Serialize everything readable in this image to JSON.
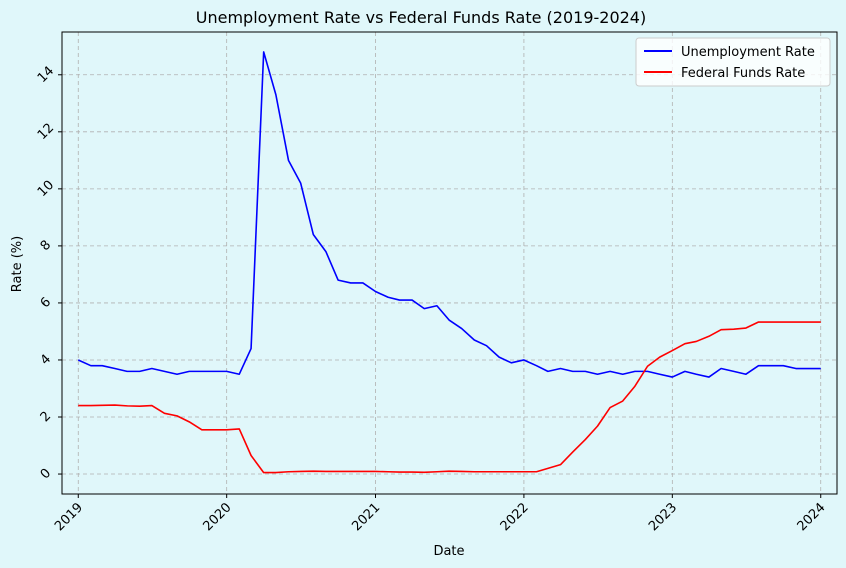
{
  "colors": {
    "figure_bg": "#e0f7fa",
    "axes_bg": "#e0f7fa",
    "grid": "#b0b0b0",
    "unemployment": "#0000ff",
    "fed_funds": "#ff0000"
  },
  "chart_data": {
    "type": "line",
    "title": "Unemployment Rate vs Federal Funds Rate (2019-2024)",
    "xlabel": "Date",
    "ylabel": "Rate (%)",
    "grid": true,
    "legend_position": "top-right",
    "xlim": [
      "2018-11-22",
      "2024-02-10"
    ],
    "ylim": [
      -0.7,
      15.5
    ],
    "x_ticks": [
      "2019-01-01",
      "2020-01-01",
      "2021-01-01",
      "2022-01-01",
      "2023-01-01",
      "2024-01-01"
    ],
    "x_tick_labels": [
      "2019",
      "2020",
      "2021",
      "2022",
      "2023",
      "2024"
    ],
    "y_ticks": [
      0,
      2,
      4,
      6,
      8,
      10,
      12,
      14
    ],
    "y_tick_labels": [
      "0",
      "2",
      "4",
      "6",
      "8",
      "10",
      "12",
      "14"
    ],
    "x": [
      "2019-01-01",
      "2019-02-01",
      "2019-03-01",
      "2019-04-01",
      "2019-05-01",
      "2019-06-01",
      "2019-07-01",
      "2019-08-01",
      "2019-09-01",
      "2019-10-01",
      "2019-11-01",
      "2019-12-01",
      "2020-01-01",
      "2020-02-01",
      "2020-03-01",
      "2020-04-01",
      "2020-05-01",
      "2020-06-01",
      "2020-07-01",
      "2020-08-01",
      "2020-09-01",
      "2020-10-01",
      "2020-11-01",
      "2020-12-01",
      "2021-01-01",
      "2021-02-01",
      "2021-03-01",
      "2021-04-01",
      "2021-05-01",
      "2021-06-01",
      "2021-07-01",
      "2021-08-01",
      "2021-09-01",
      "2021-10-01",
      "2021-11-01",
      "2021-12-01",
      "2022-01-01",
      "2022-02-01",
      "2022-03-01",
      "2022-04-01",
      "2022-05-01",
      "2022-06-01",
      "2022-07-01",
      "2022-08-01",
      "2022-09-01",
      "2022-10-01",
      "2022-11-01",
      "2022-12-01",
      "2023-01-01",
      "2023-02-01",
      "2023-03-01",
      "2023-04-01",
      "2023-05-01",
      "2023-06-01",
      "2023-07-01",
      "2023-08-01",
      "2023-09-01",
      "2023-10-01",
      "2023-11-01",
      "2023-12-01",
      "2024-01-01"
    ],
    "series": [
      {
        "name": "Unemployment Rate",
        "color": "#0000ff",
        "values": [
          4.0,
          3.8,
          3.8,
          3.7,
          3.6,
          3.6,
          3.7,
          3.6,
          3.5,
          3.6,
          3.6,
          3.6,
          3.6,
          3.5,
          4.4,
          14.8,
          13.3,
          11.0,
          10.2,
          8.4,
          7.8,
          6.8,
          6.7,
          6.7,
          6.4,
          6.2,
          6.1,
          6.1,
          5.8,
          5.9,
          5.4,
          5.1,
          4.7,
          4.5,
          4.1,
          3.9,
          4.0,
          3.8,
          3.6,
          3.7,
          3.6,
          3.6,
          3.5,
          3.6,
          3.5,
          3.6,
          3.6,
          3.5,
          3.4,
          3.6,
          3.5,
          3.4,
          3.7,
          3.6,
          3.5,
          3.8,
          3.8,
          3.8,
          3.7,
          3.7,
          3.7
        ]
      },
      {
        "name": "Federal Funds Rate",
        "color": "#ff0000",
        "values": [
          2.4,
          2.4,
          2.41,
          2.42,
          2.39,
          2.38,
          2.4,
          2.13,
          2.04,
          1.83,
          1.55,
          1.55,
          1.55,
          1.58,
          0.65,
          0.05,
          0.05,
          0.08,
          0.09,
          0.1,
          0.09,
          0.09,
          0.09,
          0.09,
          0.09,
          0.08,
          0.07,
          0.07,
          0.06,
          0.08,
          0.1,
          0.09,
          0.08,
          0.08,
          0.08,
          0.08,
          0.08,
          0.08,
          0.2,
          0.33,
          0.77,
          1.21,
          1.68,
          2.33,
          2.56,
          3.08,
          3.78,
          4.1,
          4.33,
          4.57,
          4.65,
          4.83,
          5.06,
          5.08,
          5.12,
          5.33,
          5.33,
          5.33,
          5.33,
          5.33,
          5.33
        ]
      }
    ]
  }
}
